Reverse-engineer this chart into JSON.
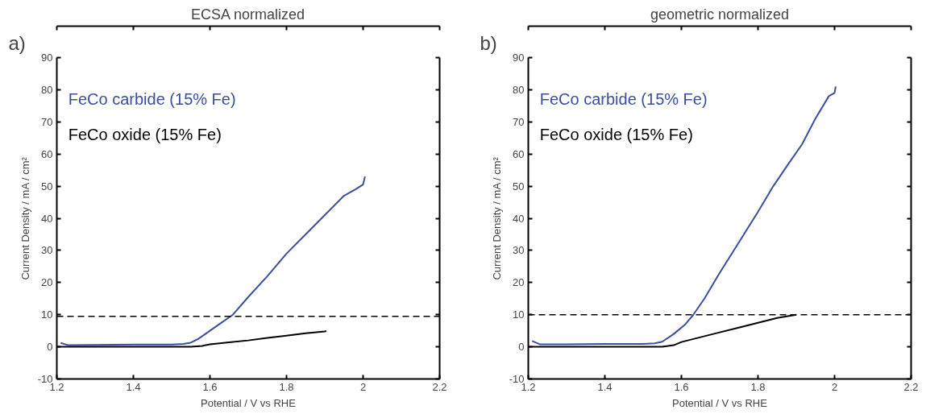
{
  "chart_data": [
    {
      "type": "line",
      "title": "ECSA normalized",
      "xlabel": "Potential / V vs RHE",
      "ylabel": "Current Density / mA / cm²",
      "annotations": [
        "a)"
      ],
      "xlim": [
        1.2,
        2.2
      ],
      "xticks": [
        1.2,
        1.4,
        1.6,
        1.8,
        2,
        2.2
      ],
      "ylim": [
        -10,
        90
      ],
      "yticks": [
        -10,
        0,
        10,
        20,
        30,
        40,
        50,
        60,
        70,
        80,
        90
      ],
      "grid": false,
      "legend": "top left",
      "marker": "none",
      "line_style": "solid",
      "ref_lines": [
        {
          "axis": "y",
          "value": 9.5,
          "color": "#000000",
          "line_style": "dashed"
        }
      ],
      "series": [
        {
          "name": "FeCo carbide (15% Fe)",
          "color": "#3a4fa0",
          "x": [
            1.21,
            1.23,
            1.3,
            1.4,
            1.5,
            1.53,
            1.55,
            1.57,
            1.6,
            1.63,
            1.66,
            1.7,
            1.75,
            1.8,
            1.85,
            1.9,
            1.95,
            1.98,
            2.0,
            2.003,
            2.005
          ],
          "values": [
            1.2,
            0.5,
            0.6,
            0.7,
            0.7,
            0.9,
            1.3,
            2.5,
            5,
            7.5,
            10,
            15.5,
            22,
            29,
            35,
            41,
            47,
            49,
            50.5,
            52,
            53
          ]
        },
        {
          "name": "FeCo oxide (15% Fe)",
          "color": "#000000",
          "x": [
            1.2,
            1.3,
            1.4,
            1.5,
            1.55,
            1.58,
            1.6,
            1.65,
            1.7,
            1.75,
            1.8,
            1.85,
            1.9,
            1.904
          ],
          "values": [
            0,
            0,
            0,
            0,
            0,
            0.3,
            0.8,
            1.4,
            2,
            2.8,
            3.5,
            4.2,
            4.8,
            4.9
          ]
        }
      ]
    },
    {
      "type": "line",
      "title": "geometric normalized",
      "xlabel": "Potential / V vs RHE",
      "ylabel": "Current Density / mA / cm²",
      "annotations": [
        "b)"
      ],
      "xlim": [
        1.2,
        2.2
      ],
      "xticks": [
        1.2,
        1.4,
        1.6,
        1.8,
        2,
        2.2
      ],
      "ylim": [
        -10,
        90
      ],
      "yticks": [
        -10,
        0,
        10,
        20,
        30,
        40,
        50,
        60,
        70,
        80,
        90
      ],
      "grid": false,
      "legend": "top left",
      "marker": "none",
      "line_style": "solid",
      "ref_lines": [
        {
          "axis": "y",
          "value": 10,
          "color": "#000000",
          "line_style": "dashed"
        }
      ],
      "series": [
        {
          "name": "FeCo carbide (15% Fe)",
          "color": "#3a4fa0",
          "x": [
            1.21,
            1.23,
            1.3,
            1.4,
            1.5,
            1.53,
            1.55,
            1.58,
            1.61,
            1.63,
            1.66,
            1.7,
            1.75,
            1.8,
            1.84,
            1.88,
            1.915,
            1.95,
            1.985,
            2.0,
            2.003
          ],
          "values": [
            1.8,
            0.8,
            0.8,
            0.9,
            0.9,
            1.1,
            1.6,
            4,
            7,
            9.8,
            15,
            23,
            32.5,
            42,
            50,
            57,
            63,
            71,
            78,
            79,
            81
          ]
        },
        {
          "name": "FeCo oxide (15% Fe)",
          "color": "#000000",
          "x": [
            1.2,
            1.3,
            1.4,
            1.5,
            1.55,
            1.58,
            1.6,
            1.65,
            1.7,
            1.75,
            1.8,
            1.85,
            1.9
          ],
          "values": [
            0,
            0,
            0,
            0,
            0,
            0.5,
            1.5,
            3,
            4.5,
            6,
            7.5,
            9,
            10
          ]
        }
      ]
    }
  ]
}
